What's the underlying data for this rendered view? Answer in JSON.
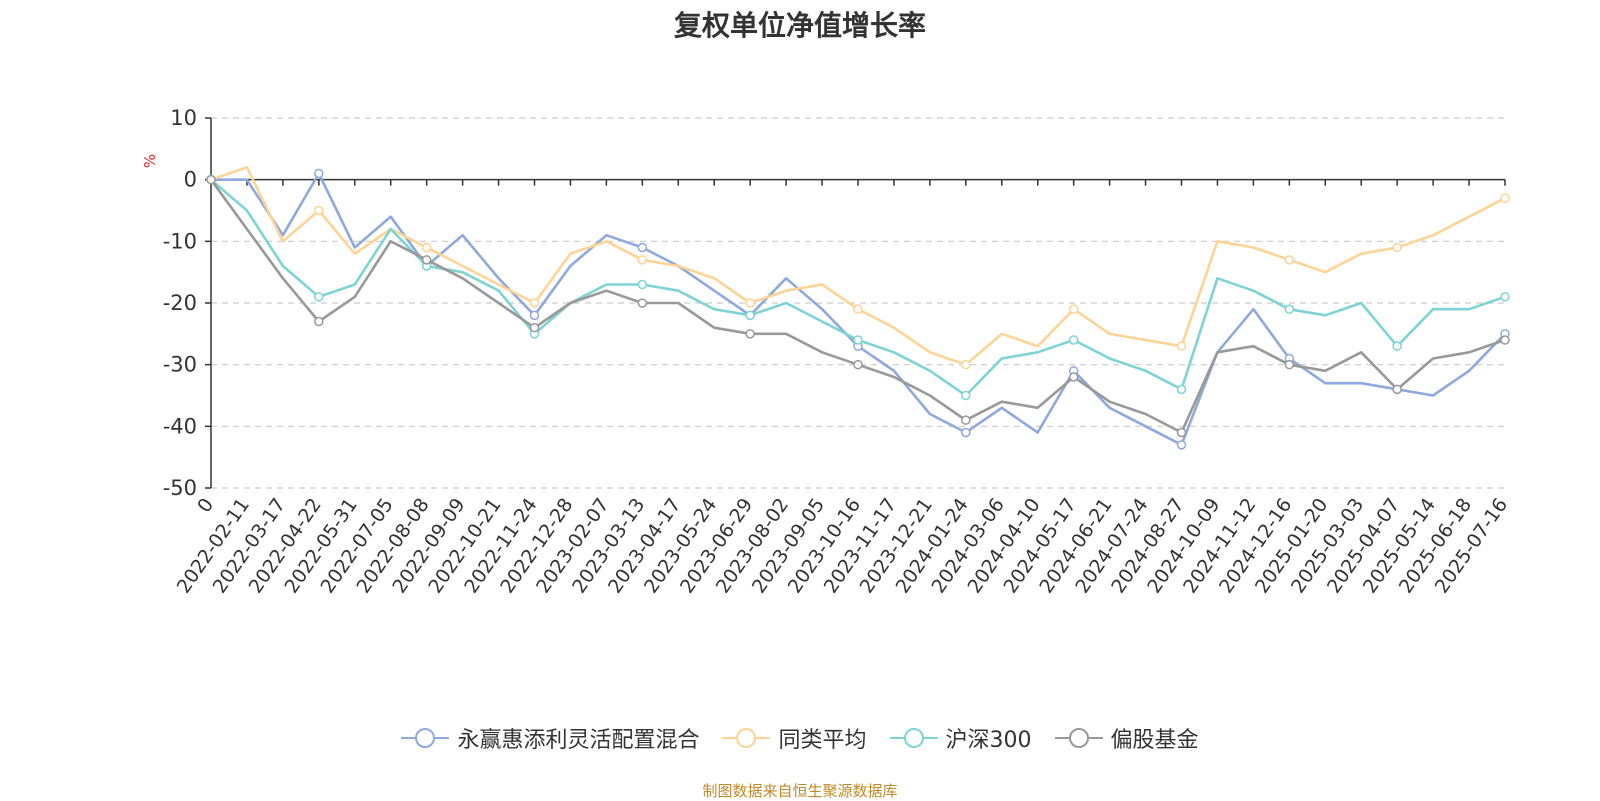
{
  "chart_data": {
    "type": "line",
    "title": "复权单位净值增长率",
    "ylabel": "%",
    "ylim": [
      -50,
      10
    ],
    "yticks": [
      10,
      0,
      -10,
      -20,
      -30,
      -40,
      -50
    ],
    "grid": true,
    "legend_position": "bottom",
    "x_labels": [
      "0",
      "2022-02-11",
      "2022-03-17",
      "2022-04-22",
      "2022-05-31",
      "2022-07-05",
      "2022-08-08",
      "2022-09-09",
      "2022-10-21",
      "2022-11-24",
      "2022-12-28",
      "2023-02-07",
      "2023-03-13",
      "2023-04-17",
      "2023-05-24",
      "2023-06-29",
      "2023-08-02",
      "2023-09-05",
      "2023-10-16",
      "2023-11-17",
      "2023-12-21",
      "2024-01-24",
      "2024-03-06",
      "2024-04-10",
      "2024-05-17",
      "2024-06-21",
      "2024-07-24",
      "2024-08-27",
      "2024-10-09",
      "2024-11-12",
      "2024-12-16",
      "2025-01-20",
      "2025-03-03",
      "2025-04-07",
      "2025-05-14",
      "2025-06-18",
      "2025-07-16"
    ],
    "series": [
      {
        "name": "永赢惠添利灵活配置混合",
        "color": "#8fa9dc",
        "values": [
          0,
          0,
          -9,
          1,
          -11,
          -6,
          -14,
          -9,
          -16,
          -22,
          -14,
          -9,
          -11,
          -14,
          -18,
          -22,
          -16,
          -21,
          -27,
          -31,
          -38,
          -41,
          -37,
          -41,
          -31,
          -37,
          -40,
          -43,
          -28,
          -21,
          -29,
          -33,
          -33,
          -34,
          -35,
          -31,
          -25
        ]
      },
      {
        "name": "同类平均",
        "color": "#fdd495",
        "values": [
          0,
          2,
          -10,
          -5,
          -12,
          -8,
          -11,
          -14,
          -17,
          -20,
          -12,
          -10,
          -13,
          -14,
          -16,
          -20,
          -18,
          -17,
          -21,
          -24,
          -28,
          -30,
          -25,
          -27,
          -21,
          -25,
          -26,
          -27,
          -10,
          -11,
          -13,
          -15,
          -12,
          -11,
          -9,
          -6,
          -3
        ]
      },
      {
        "name": "沪深300",
        "color": "#7ed3d4",
        "values": [
          0,
          -5,
          -14,
          -19,
          -17,
          -8,
          -14,
          -15,
          -18,
          -25,
          -20,
          -17,
          -17,
          -18,
          -21,
          -22,
          -20,
          -23,
          -26,
          -28,
          -31,
          -35,
          -29,
          -28,
          -26,
          -29,
          -31,
          -34,
          -16,
          -18,
          -21,
          -22,
          -20,
          -27,
          -21,
          -21,
          -19
        ]
      },
      {
        "name": "偏股基金",
        "color": "#999999",
        "values": [
          0,
          -8,
          -16,
          -23,
          -19,
          -10,
          -13,
          -16,
          -20,
          -24,
          -20,
          -18,
          -20,
          -20,
          -24,
          -25,
          -25,
          -28,
          -30,
          -32,
          -35,
          -39,
          -36,
          -37,
          -32,
          -36,
          -38,
          -41,
          -28,
          -27,
          -30,
          -31,
          -28,
          -34,
          -29,
          -28,
          -26
        ]
      }
    ]
  },
  "legend": {
    "items": [
      "永赢惠添利灵活配置混合",
      "同类平均",
      "沪深300",
      "偏股基金"
    ]
  },
  "source": "制图数据来自恒生聚源数据库"
}
